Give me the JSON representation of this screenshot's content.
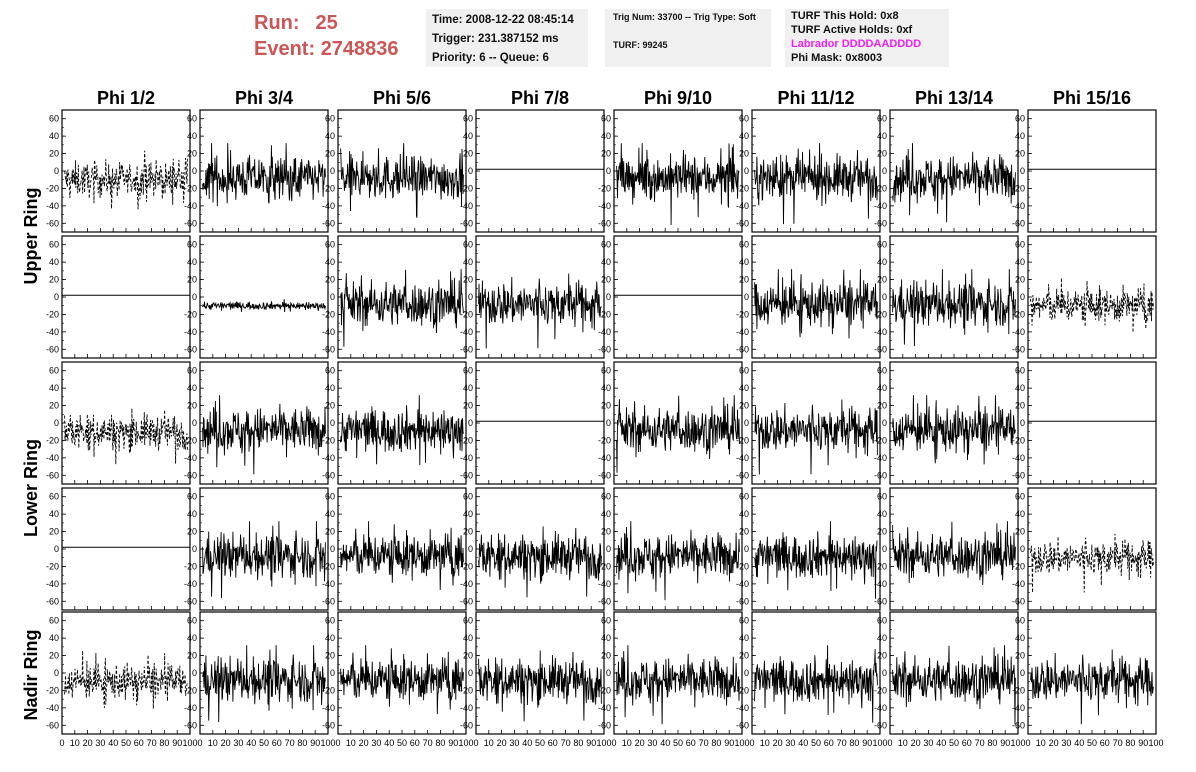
{
  "header": {
    "run_label": "Run:",
    "run_value": "25",
    "event_label": "Event:",
    "event_value": "2748836",
    "time": "Time: 2008-12-22 08:45:14",
    "trigger": "Trigger: 231.387152 ms",
    "priority_queue": "Priority: 6 -- Queue: 6",
    "trig_info": "Trig Num: 33700 -- Trig Type: Soft",
    "turf": "TURF: 99245",
    "turf_this_hold": "TURF This Hold: 0x8",
    "turf_active_holds": "TURF Active Holds: 0xf",
    "labrador": "Labrador DDDDAADDDD",
    "phi_mask": "Phi Mask: 0x8003"
  },
  "colors": {
    "run_text": "#cc5555",
    "labrador_text": "#ee22ee",
    "info_box_bg": "#f0f0f0",
    "trace": "#000000"
  },
  "chart_data": {
    "type": "line",
    "layout": "grid of waveform panels",
    "column_titles": [
      "Phi 1/2",
      "Phi 3/4",
      "Phi 5/6",
      "Phi 7/8",
      "Phi 9/10",
      "Phi 11/12",
      "Phi 13/14",
      "Phi 15/16"
    ],
    "row_titles": [
      "Upper Ring",
      "Lower Ring",
      "Nadir Ring"
    ],
    "panel_rows": 5,
    "xlim": [
      0,
      100
    ],
    "ylim": [
      -70,
      70
    ],
    "x_tick_labels": [
      "0",
      "10",
      "20",
      "30",
      "40",
      "50",
      "60",
      "70",
      "80",
      "90",
      "100"
    ],
    "y_tick_labels": [
      "60",
      "40",
      "20",
      "0",
      "-20",
      "-40",
      "-60"
    ],
    "panels": [
      [
        "dashed",
        "solid",
        "solid",
        "flat",
        "solid",
        "solid",
        "solid",
        "flat"
      ],
      [
        "flat",
        "low",
        "solid",
        "solid",
        "flat",
        "solid",
        "solid",
        "dashed"
      ],
      [
        "dashed",
        "solid",
        "solid",
        "flat",
        "solid",
        "solid",
        "solid",
        "flat"
      ],
      [
        "flat",
        "solid",
        "solid",
        "solid",
        "solid",
        "solid",
        "solid",
        "dashed"
      ],
      [
        "dashed",
        "solid",
        "solid",
        "solid",
        "solid",
        "solid",
        "solid",
        "solid"
      ]
    ],
    "flat_level": 2
  }
}
